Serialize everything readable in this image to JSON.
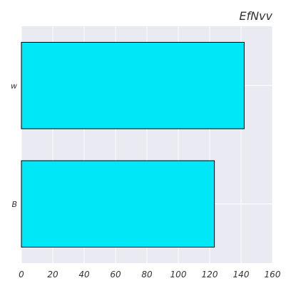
{
  "chart_data": {
    "type": "bar",
    "orientation": "horizontal",
    "title": "EfNvv",
    "xlabel": "",
    "ylabel": "",
    "categories": [
      "w",
      "B"
    ],
    "values": [
      142,
      123
    ],
    "xlim": [
      0,
      160
    ],
    "xticks": [
      0,
      20,
      40,
      60,
      80,
      100,
      120,
      140,
      160
    ],
    "grid": true,
    "bar_color": "#00e8f7",
    "bar_edge_color": "#000000",
    "plot_background": "#eaeaf2",
    "grid_color": "#ffffff"
  }
}
